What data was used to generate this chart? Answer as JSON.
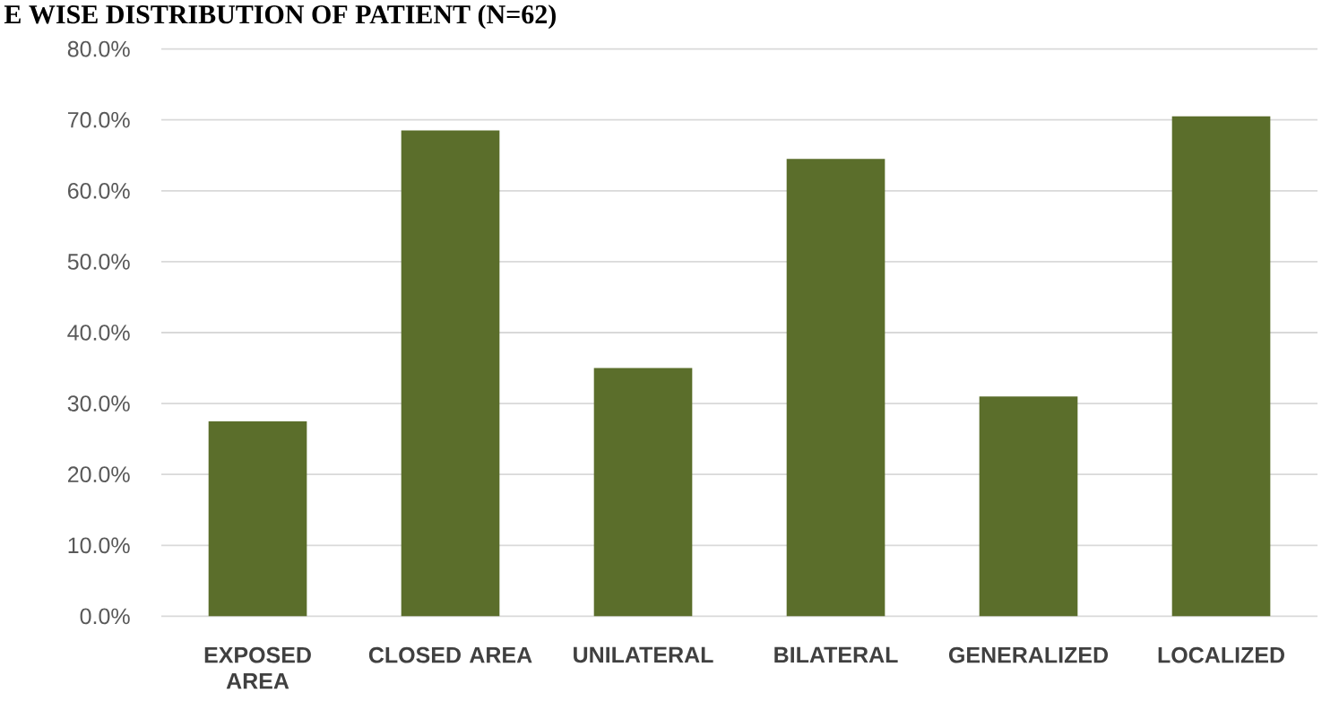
{
  "chart_data": {
    "type": "bar",
    "title": "E WISE DISTRIBUTION OF PATIENT (N=62)",
    "categories": [
      "EXPOSED AREA",
      "CLOSED AREA",
      "UNILATERAL",
      "BILATERAL",
      "GENERALIZED",
      "LOCALIZED"
    ],
    "values": [
      27.5,
      68.5,
      35,
      64.5,
      31,
      70.5
    ],
    "color": "#5b6e2b",
    "ylim": [
      0,
      80
    ],
    "yticks": [
      {
        "value": 0,
        "label": "0.0%"
      },
      {
        "value": 10,
        "label": "10.0%"
      },
      {
        "value": 20,
        "label": "20.0%"
      },
      {
        "value": 30,
        "label": "30.0%"
      },
      {
        "value": 40,
        "label": "40.0%"
      },
      {
        "value": 50,
        "label": "50.0%"
      },
      {
        "value": 60,
        "label": "60.0%"
      },
      {
        "value": 70,
        "label": "70.0%"
      },
      {
        "value": 80,
        "label": "80.0%"
      }
    ],
    "grid": "y"
  }
}
